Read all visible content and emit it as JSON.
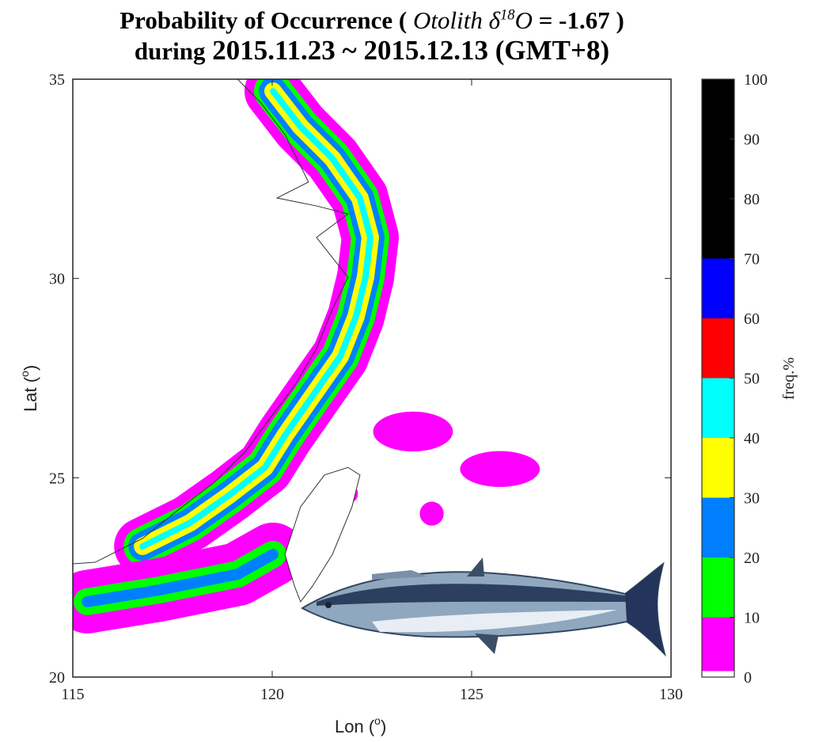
{
  "title": {
    "line1_prefix": "Probability of Occurrence (",
    "line1_italic": "Otolith δ",
    "line1_sup": "18",
    "line1_italic2": "O",
    "line1_suffix": "= -1.67 )",
    "line2_prefix": "during",
    "line2_dates": "2015.11.23 ~ 2015.12.13 (GMT+8)"
  },
  "chart_data": {
    "type": "heatmap",
    "subtype": "filled-contour map",
    "xlabel": "Lon",
    "xlabel_unit": "o",
    "ylabel": "Lat",
    "ylabel_unit": "o",
    "xlim": [
      115,
      130
    ],
    "ylim": [
      20,
      35
    ],
    "xticks": [
      "115",
      "120",
      "125",
      "130"
    ],
    "yticks": [
      "20",
      "25",
      "30",
      "35"
    ],
    "colorbar": {
      "label": "freq.%",
      "range": [
        0,
        100
      ],
      "ticks": [
        "0",
        "10",
        "20",
        "30",
        "40",
        "50",
        "60",
        "70",
        "80",
        "90",
        "100"
      ],
      "levels": [
        {
          "from": 0,
          "to": 1,
          "color": "#ffffff"
        },
        {
          "from": 1,
          "to": 10,
          "color": "#ff00ff"
        },
        {
          "from": 10,
          "to": 20,
          "color": "#00ff00"
        },
        {
          "from": 20,
          "to": 30,
          "color": "#0080ff"
        },
        {
          "from": 30,
          "to": 40,
          "color": "#ffff00"
        },
        {
          "from": 40,
          "to": 50,
          "color": "#00ffff"
        },
        {
          "from": 50,
          "to": 60,
          "color": "#ff0000"
        },
        {
          "from": 60,
          "to": 70,
          "color": "#0000ff"
        },
        {
          "from": 70,
          "to": 100,
          "color": "#000000"
        }
      ]
    },
    "main_band_centerline": [
      [
        120.02,
        34.7
      ],
      [
        120.71,
        33.81
      ],
      [
        121.51,
        33.01
      ],
      [
        122.2,
        32.02
      ],
      [
        122.46,
        31.03
      ],
      [
        122.34,
        30.03
      ],
      [
        122.1,
        29.04
      ],
      [
        121.71,
        28.05
      ],
      [
        121.01,
        27.05
      ],
      [
        120.32,
        26.06
      ],
      [
        119.82,
        25.26
      ],
      [
        118.93,
        24.57
      ],
      [
        117.94,
        23.87
      ],
      [
        116.75,
        23.28
      ]
    ],
    "main_band_max_level": 50,
    "south_band_centerline": [
      [
        115.36,
        21.89
      ],
      [
        117.14,
        22.18
      ],
      [
        119.13,
        22.58
      ],
      [
        120.02,
        23.08
      ]
    ],
    "south_band_max_level": 30,
    "isolated_patches_1_to_10": [
      {
        "lon": 123.53,
        "lat": 26.16,
        "rlon": 1.0,
        "rlat": 0.5
      },
      {
        "lon": 125.71,
        "lat": 25.22,
        "rlon": 1.0,
        "rlat": 0.45
      },
      {
        "lon": 122.0,
        "lat": 24.6,
        "rlon": 0.15,
        "rlat": 0.2
      },
      {
        "lon": 124.0,
        "lat": 24.1,
        "rlon": 0.3,
        "rlat": 0.3
      }
    ],
    "coastline_china": [
      [
        119.13,
        35.0
      ],
      [
        119.72,
        34.4
      ],
      [
        120.32,
        33.61
      ],
      [
        120.91,
        32.42
      ],
      [
        120.12,
        32.02
      ],
      [
        121.11,
        31.82
      ],
      [
        121.9,
        31.62
      ],
      [
        121.11,
        31.03
      ],
      [
        121.9,
        30.03
      ],
      [
        121.51,
        29.24
      ],
      [
        121.11,
        28.24
      ],
      [
        120.52,
        27.25
      ],
      [
        119.92,
        26.46
      ],
      [
        119.33,
        25.66
      ],
      [
        118.53,
        24.87
      ],
      [
        117.74,
        24.27
      ],
      [
        116.75,
        23.48
      ],
      [
        115.56,
        22.88
      ],
      [
        115.0,
        22.84
      ]
    ],
    "coastline_taiwan": [
      [
        121.9,
        25.26
      ],
      [
        122.2,
        25.07
      ],
      [
        122.0,
        24.27
      ],
      [
        121.51,
        23.08
      ],
      [
        121.01,
        22.28
      ],
      [
        120.71,
        21.89
      ],
      [
        120.56,
        22.28
      ],
      [
        120.32,
        23.08
      ],
      [
        120.71,
        24.27
      ],
      [
        121.31,
        25.07
      ]
    ]
  }
}
